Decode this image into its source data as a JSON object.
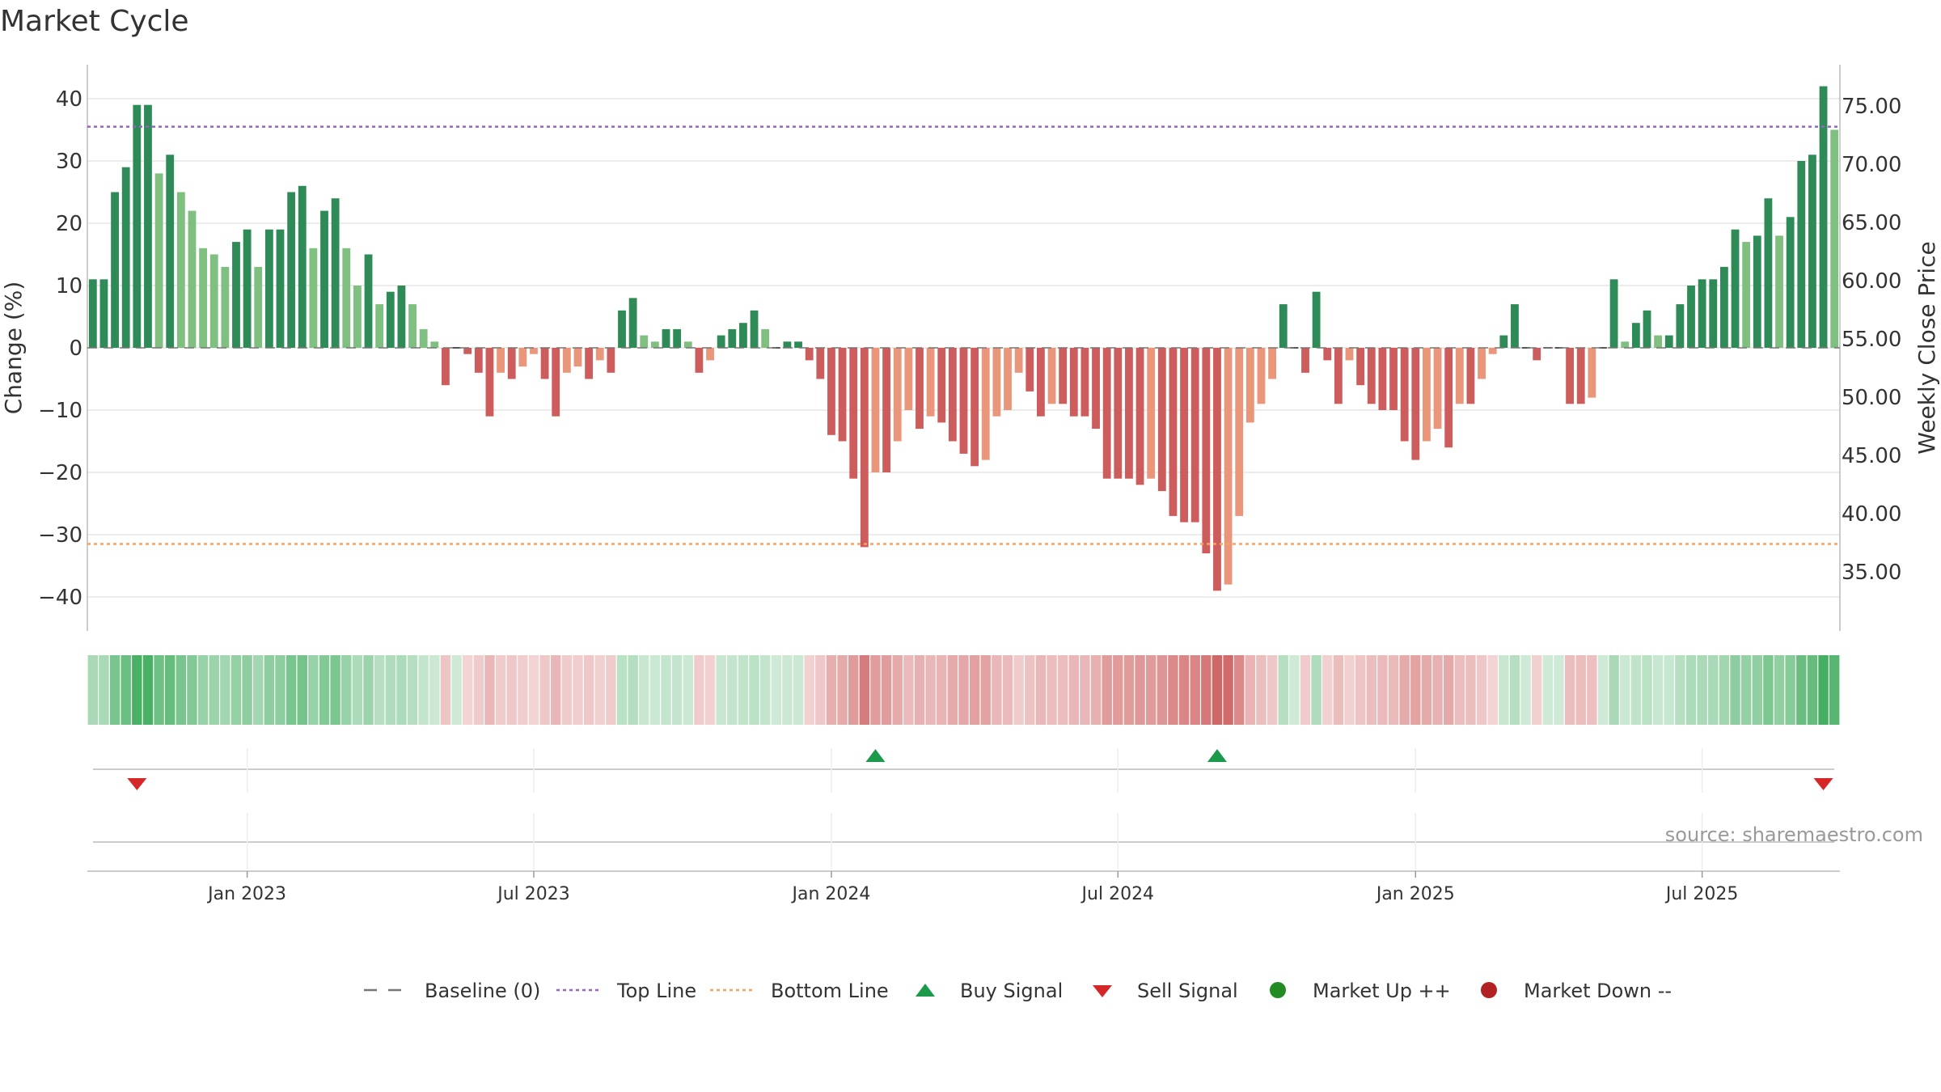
{
  "title": "Market Cycle",
  "source": "source: sharemaestro.com",
  "colors": {
    "up_strong": "#2e8b57",
    "up_light": "#7fbf7f",
    "down_strong": "#cd5c5c",
    "down_light": "#e9967a",
    "top_line": "#9467bd",
    "bottom_line": "#f4a460",
    "baseline": "#777777",
    "buy": "#1a9a4a",
    "sell": "#d62728",
    "market_up": "#228b22",
    "market_down": "#b22222"
  },
  "chart_data": {
    "type": "bar",
    "y_left": {
      "label": "Change (%)",
      "ticks": [
        "40",
        "30",
        "20",
        "10",
        "0",
        "−10",
        "−20",
        "−30",
        "−40"
      ],
      "tick_values": [
        40,
        30,
        20,
        10,
        0,
        -10,
        -20,
        -30,
        -40
      ],
      "range": [
        -45,
        45
      ]
    },
    "y_right": {
      "label": "Weekly Close Price",
      "ticks": [
        "75.00",
        "70.00",
        "65.00",
        "60.00",
        "55.00",
        "50.00",
        "45.00",
        "40.00",
        "35.00"
      ],
      "tick_values": [
        75,
        70,
        65,
        60,
        55,
        50,
        45,
        40,
        35
      ]
    },
    "x_ticks": [
      "Jan 2023",
      "Jul 2023",
      "Jan 2024",
      "Jul 2024",
      "Jan 2025",
      "Jul 2025"
    ],
    "x_tick_index": [
      14,
      40,
      67,
      93,
      120,
      146
    ],
    "top_line": 35.5,
    "bottom_line": -31.5,
    "values": [
      11,
      11,
      25,
      29,
      39,
      39,
      28,
      31,
      25,
      22,
      16,
      15,
      13,
      17,
      19,
      13,
      19,
      19,
      25,
      26,
      16,
      22,
      24,
      16,
      10,
      15,
      7,
      9,
      10,
      7,
      3,
      1,
      -6,
      0,
      -1,
      -4,
      -11,
      -4,
      -5,
      -3,
      -1,
      -5,
      -11,
      -4,
      -3,
      -5,
      -2,
      -4,
      6,
      8,
      2,
      1,
      3,
      3,
      1,
      -4,
      -2,
      2,
      3,
      4,
      6,
      3,
      0,
      1,
      1,
      -2,
      -5,
      -14,
      -15,
      -21,
      -32,
      -20,
      -20,
      -15,
      -10,
      -13,
      -11,
      -12,
      -15,
      -17,
      -19,
      -18,
      -11,
      -10,
      -4,
      -7,
      -11,
      -9,
      -9,
      -11,
      -11,
      -13,
      -21,
      -21,
      -21,
      -22,
      -21,
      -23,
      -27,
      -28,
      -28,
      -33,
      -39,
      -38,
      -27,
      -12,
      -9,
      -5,
      7,
      0,
      -4,
      9,
      -2,
      -9,
      -2,
      -6,
      -9,
      -10,
      -10,
      -15,
      -18,
      -15,
      -13,
      -16,
      -9,
      -9,
      -5,
      -1,
      2,
      7,
      0,
      -2,
      0,
      0,
      -9,
      -9,
      -8,
      0,
      11,
      1,
      4,
      6,
      2,
      2,
      7,
      10,
      11,
      11,
      13,
      19,
      17,
      18,
      24,
      18,
      21,
      30,
      31,
      42,
      35
    ],
    "buy_signals": [
      71,
      102
    ],
    "sell_signals": [
      4,
      157
    ],
    "legend": [
      {
        "name": "Baseline (0)",
        "kind": "dash"
      },
      {
        "name": "Top Line",
        "kind": "dot-purple"
      },
      {
        "name": "Bottom Line",
        "kind": "dot-orange"
      },
      {
        "name": "Buy Signal",
        "kind": "tri-up"
      },
      {
        "name": "Sell Signal",
        "kind": "tri-down"
      },
      {
        "name": "Market Up ++",
        "kind": "circle-green"
      },
      {
        "name": "Market Down --",
        "kind": "circle-red"
      }
    ]
  }
}
